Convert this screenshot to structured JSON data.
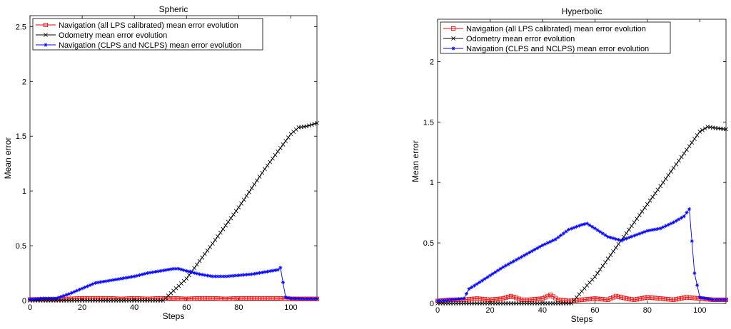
{
  "chart_data": [
    {
      "type": "line",
      "title": "Spheric",
      "xlabel": "Steps",
      "ylabel": "Mean error",
      "xlim": [
        0,
        110
      ],
      "ylim": [
        0,
        2.6
      ],
      "xticks": [
        0,
        20,
        40,
        60,
        80,
        100
      ],
      "yticks": [
        0,
        0.5,
        1,
        1.5,
        2,
        2.5
      ],
      "grid": false,
      "legend_position": "top-left",
      "series": [
        {
          "name": "Navigation (all LPS calibrated) mean error evolution",
          "color": "#ff0000",
          "marker": "square",
          "x": [
            0,
            5,
            10,
            15,
            20,
            25,
            30,
            35,
            40,
            45,
            50,
            55,
            60,
            65,
            70,
            75,
            80,
            85,
            90,
            95,
            100,
            105,
            110
          ],
          "y": [
            0.01,
            0.01,
            0.01,
            0.015,
            0.02,
            0.02,
            0.02,
            0.015,
            0.02,
            0.015,
            0.02,
            0.02,
            0.015,
            0.02,
            0.02,
            0.015,
            0.02,
            0.02,
            0.02,
            0.02,
            0.015,
            0.015,
            0.015
          ]
        },
        {
          "name": "Odometry mean error evolution",
          "color": "#000000",
          "marker": "x",
          "x": [
            0,
            51,
            60,
            70,
            80,
            90,
            100,
            103,
            106,
            110
          ],
          "y": [
            0,
            0,
            0.2,
            0.52,
            0.85,
            1.2,
            1.52,
            1.58,
            1.59,
            1.62
          ]
        },
        {
          "name": "Navigation (CLPS and NCLPS) mean error evolution",
          "color": "#0000ff",
          "marker": "star",
          "x": [
            0,
            5,
            10,
            15,
            20,
            25,
            30,
            35,
            40,
            45,
            50,
            55,
            57,
            60,
            65,
            70,
            75,
            80,
            85,
            90,
            95,
            96,
            98,
            100,
            105,
            110
          ],
          "y": [
            0.01,
            0.02,
            0.02,
            0.06,
            0.11,
            0.16,
            0.18,
            0.2,
            0.22,
            0.25,
            0.27,
            0.29,
            0.29,
            0.27,
            0.24,
            0.22,
            0.22,
            0.23,
            0.24,
            0.26,
            0.28,
            0.3,
            0.03,
            0.02,
            0.015,
            0.015
          ]
        }
      ]
    },
    {
      "type": "line",
      "title": "Hyperbolic",
      "xlabel": "Steps",
      "ylabel": "Mean error",
      "xlim": [
        0,
        110
      ],
      "ylim": [
        0,
        2.35
      ],
      "xticks": [
        0,
        20,
        40,
        60,
        80,
        100
      ],
      "yticks": [
        0,
        0.5,
        1,
        1.5,
        2
      ],
      "grid": false,
      "legend_position": "top-left",
      "series": [
        {
          "name": "Navigation (all LPS calibrated) mean error evolution",
          "color": "#ff0000",
          "marker": "square",
          "x": [
            0,
            5,
            10,
            15,
            20,
            25,
            28,
            32,
            35,
            40,
            43,
            46,
            50,
            55,
            60,
            65,
            68,
            72,
            75,
            80,
            85,
            90,
            95,
            100,
            105,
            110
          ],
          "y": [
            0.02,
            0.03,
            0.03,
            0.04,
            0.03,
            0.04,
            0.06,
            0.03,
            0.03,
            0.04,
            0.07,
            0.03,
            0.02,
            0.03,
            0.04,
            0.03,
            0.06,
            0.04,
            0.03,
            0.05,
            0.04,
            0.03,
            0.05,
            0.04,
            0.03,
            0.03
          ]
        },
        {
          "name": "Odometry mean error evolution",
          "color": "#000000",
          "marker": "x",
          "x": [
            0,
            51,
            55,
            60,
            70,
            80,
            90,
            100,
            103,
            106,
            110
          ],
          "y": [
            0,
            0,
            0.1,
            0.22,
            0.52,
            0.82,
            1.12,
            1.42,
            1.46,
            1.45,
            1.44
          ]
        },
        {
          "name": "Navigation (CLPS and NCLPS) mean error evolution",
          "color": "#0000ff",
          "marker": "star",
          "x": [
            0,
            5,
            10,
            12,
            15,
            20,
            25,
            30,
            35,
            40,
            45,
            50,
            55,
            57,
            60,
            65,
            70,
            75,
            80,
            85,
            90,
            94,
            96,
            98,
            100,
            105,
            110
          ],
          "y": [
            0.02,
            0.03,
            0.04,
            0.12,
            0.16,
            0.23,
            0.3,
            0.36,
            0.42,
            0.48,
            0.53,
            0.61,
            0.65,
            0.66,
            0.62,
            0.55,
            0.52,
            0.56,
            0.6,
            0.62,
            0.67,
            0.72,
            0.78,
            0.25,
            0.05,
            0.03,
            0.03
          ]
        }
      ]
    }
  ]
}
